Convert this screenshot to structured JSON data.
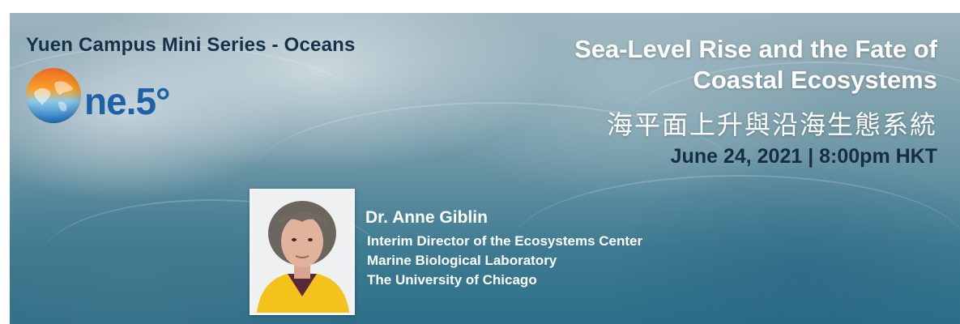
{
  "series_title": "Yuen Campus Mini Series - Oceans",
  "logo": {
    "text": "ne.5°",
    "icon": "globe-icon"
  },
  "talk": {
    "title_line1": "Sea-Level Rise and the Fate of",
    "title_line2": "Coastal Ecosystems",
    "title_zh": "海平面上升與沿海生態系統",
    "date_time": "June 24, 2021 | 8:00pm HKT"
  },
  "speaker": {
    "name": "Dr. Anne Giblin",
    "affiliations": [
      "Interim Director of the Ecosystems Center",
      "Marine Biological Laboratory",
      "The University of Chicago"
    ]
  },
  "colors": {
    "navy_text": "#16324a",
    "logo_blue": "#1b62a8",
    "globe_orange": "#f26a1f",
    "white": "#ffffff"
  }
}
